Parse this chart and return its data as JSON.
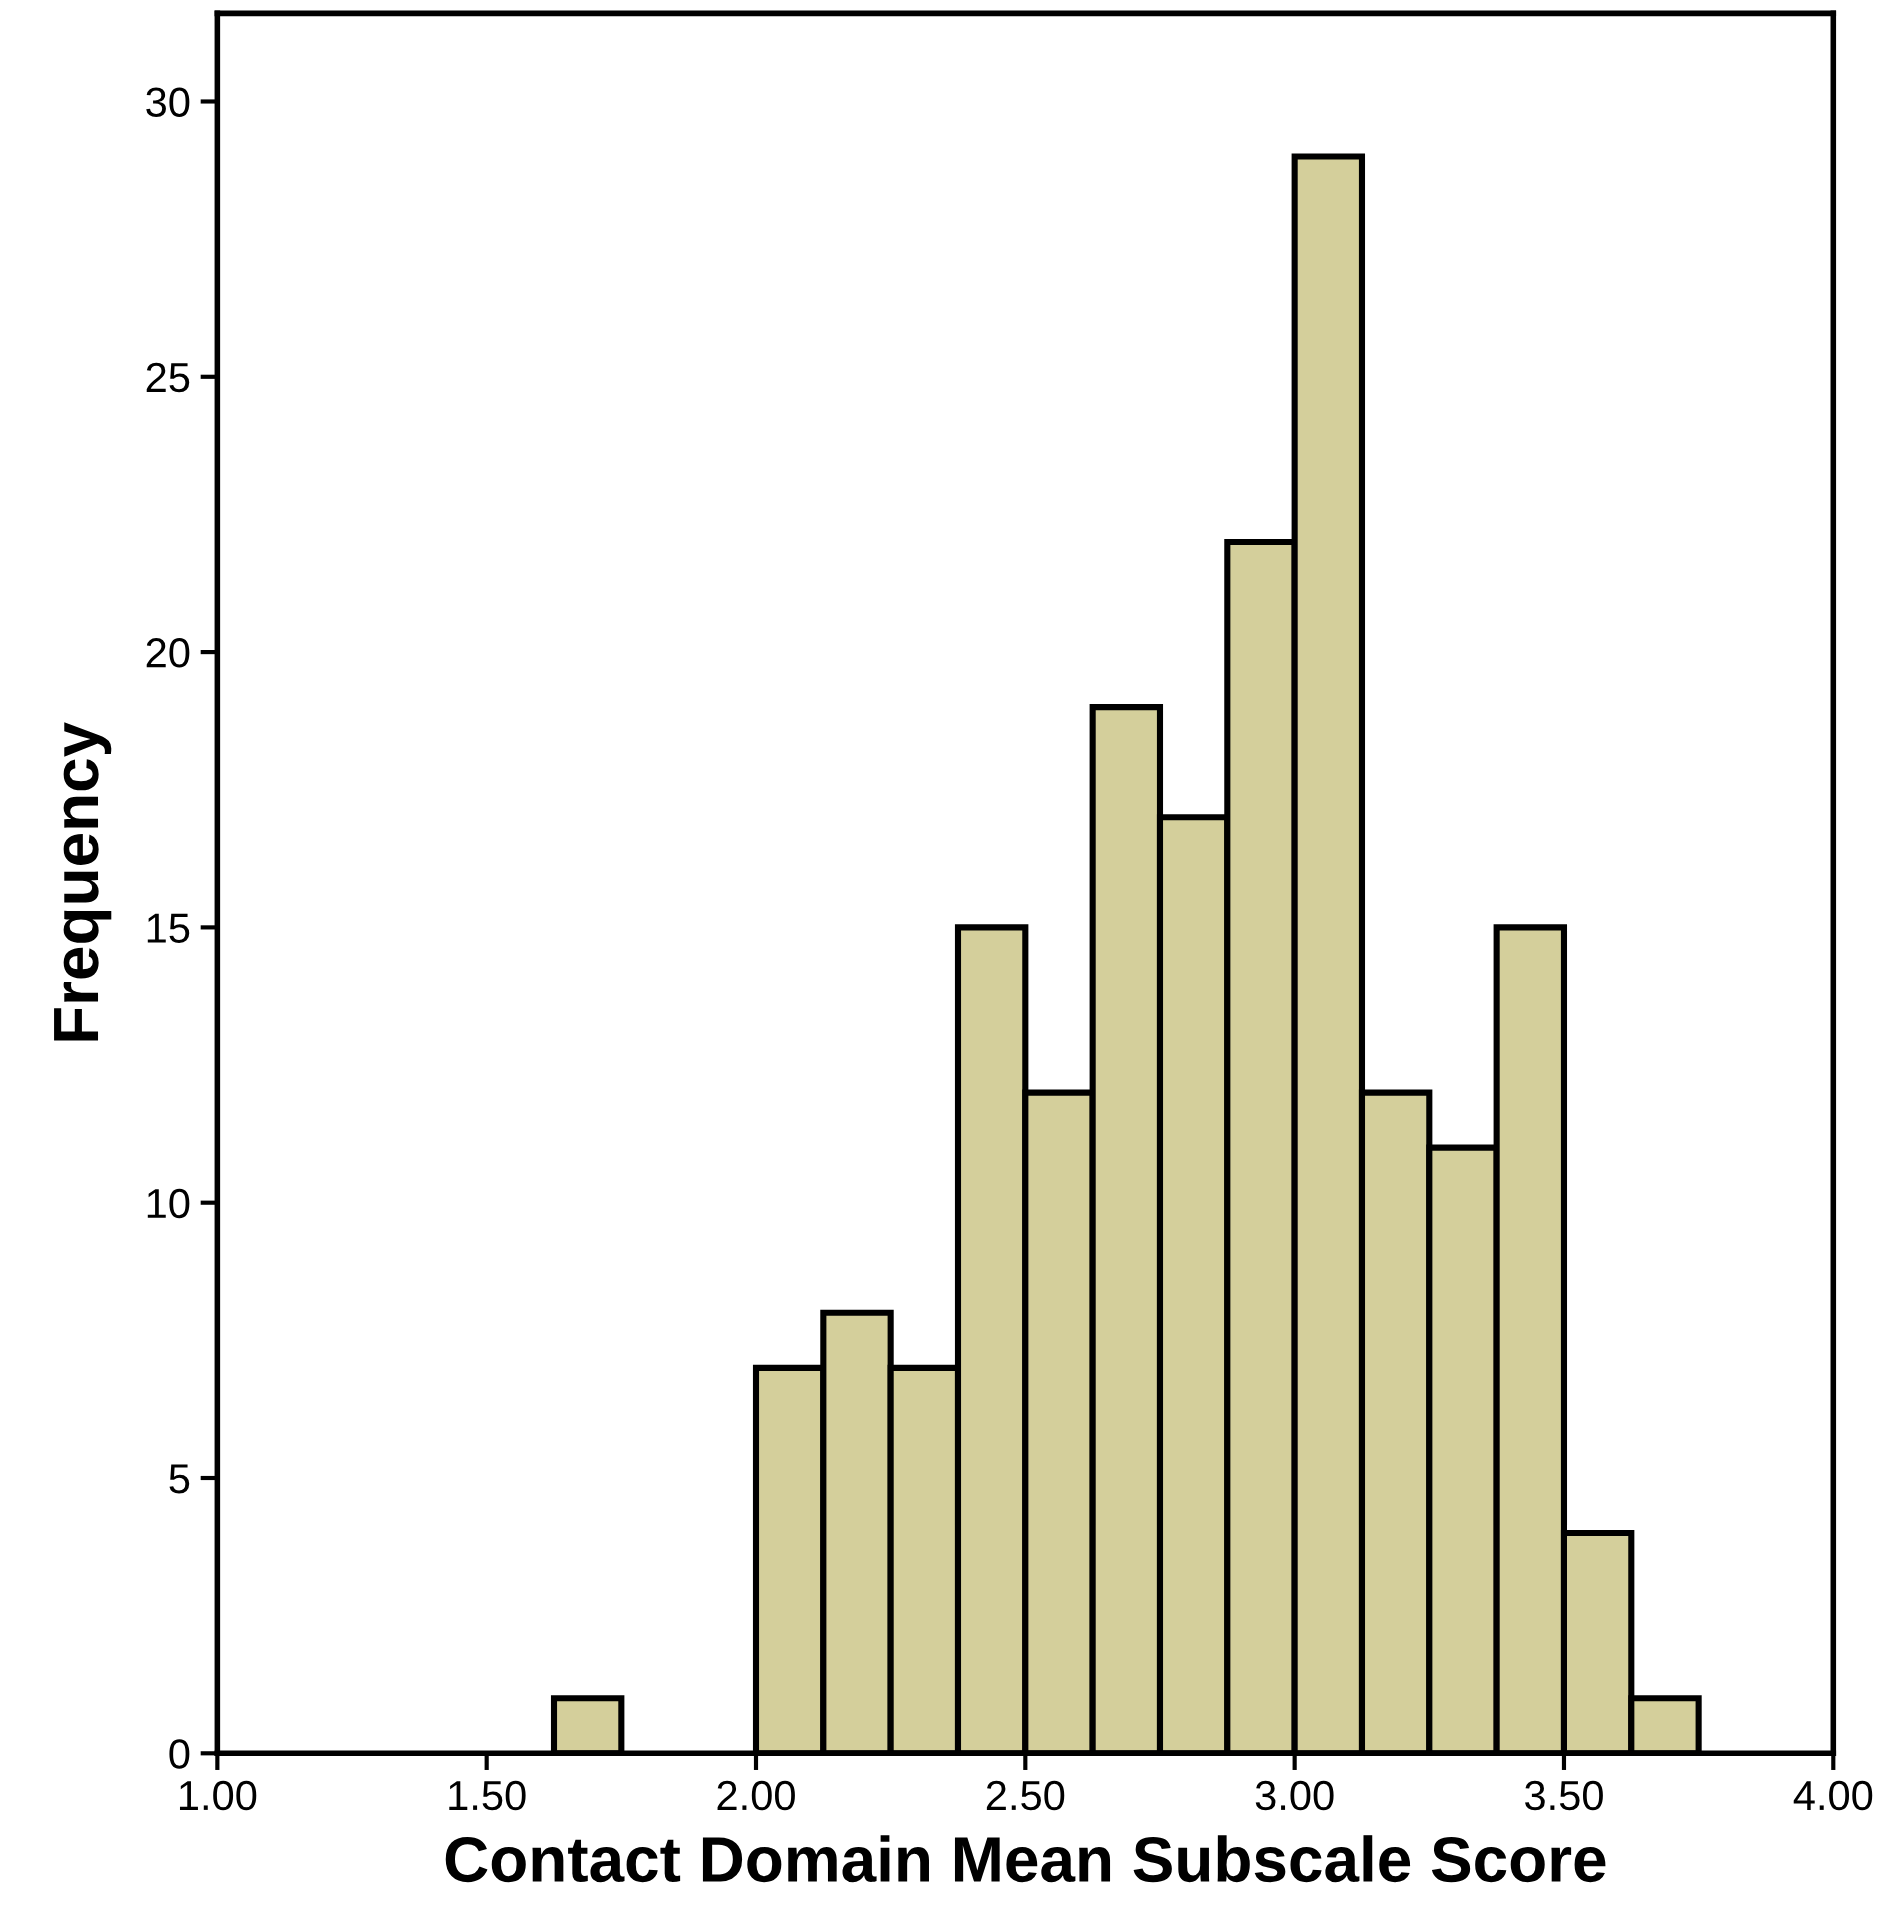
{
  "chart_data": {
    "type": "histogram",
    "xlabel": "Contact Domain Mean Subscale Score",
    "ylabel": "Frequency",
    "bins": [
      1.625,
      1.75,
      1.875,
      2.0,
      2.125,
      2.25,
      2.375,
      2.5,
      2.625,
      2.75,
      2.875,
      3.0,
      3.125,
      3.25,
      3.375,
      3.5,
      3.625,
      3.75
    ],
    "values": [
      1,
      0,
      0,
      7,
      8,
      7,
      15,
      12,
      19,
      17,
      22,
      29,
      12,
      11,
      15,
      4,
      1
    ],
    "color": "#d4cf9b",
    "xlim": [
      1.0,
      4.0
    ],
    "xticks": [
      {
        "value": 1.0,
        "label": "1.00"
      },
      {
        "value": 1.5,
        "label": "1.50"
      },
      {
        "value": 2.0,
        "label": "2.00"
      },
      {
        "value": 2.5,
        "label": "2.50"
      },
      {
        "value": 3.0,
        "label": "3.00"
      },
      {
        "value": 3.5,
        "label": "3.50"
      },
      {
        "value": 4.0,
        "label": "4.00"
      }
    ],
    "ylim": [
      0,
      31.6
    ],
    "yticks": [
      0,
      5,
      10,
      15,
      20,
      25,
      30
    ],
    "grid": false
  }
}
